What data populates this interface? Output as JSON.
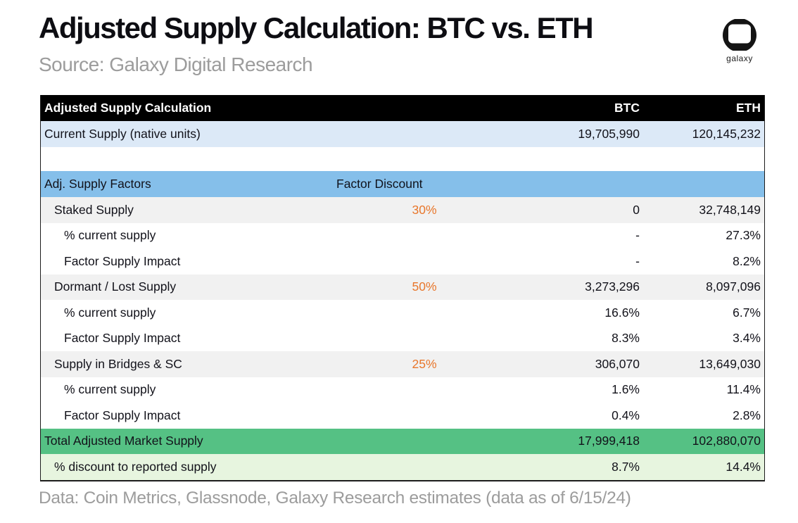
{
  "header": {
    "title": "Adjusted Supply Calculation: BTC vs. ETH",
    "source": "Source: Galaxy Digital Research",
    "logo_text": "galaxy"
  },
  "chart_data": {
    "type": "table",
    "title": "Adjusted Supply Calculation: BTC vs. ETH",
    "columns": [
      "Adjusted Supply Calculation",
      "Factor Discount",
      "BTC",
      "ETH"
    ],
    "header_row": {
      "label": "Adjusted Supply Calculation",
      "discount": "",
      "btc": "BTC",
      "eth": "ETH"
    },
    "rows": [
      {
        "label": "Current Supply (native units)",
        "discount": "",
        "btc": "19,705,990",
        "eth": "120,145,232",
        "style": "lightblue",
        "indent": 0
      },
      {
        "label": "",
        "discount": "",
        "btc": "",
        "eth": "",
        "style": "spacer",
        "indent": 0
      },
      {
        "label": "Adj. Supply Factors",
        "discount": "Factor Discount",
        "btc": "",
        "eth": "",
        "style": "blue",
        "indent": 0
      },
      {
        "label": "Staked Supply",
        "discount": "30%",
        "btc": "0",
        "eth": "32,748,149",
        "style": "gray",
        "indent": 1
      },
      {
        "label": "% current supply",
        "discount": "",
        "btc": "-",
        "eth": "27.3%",
        "style": "white",
        "indent": 2
      },
      {
        "label": "Factor Supply Impact",
        "discount": "",
        "btc": "-",
        "eth": "8.2%",
        "style": "white",
        "indent": 2
      },
      {
        "label": "Dormant / Lost Supply",
        "discount": "50%",
        "btc": "3,273,296",
        "eth": "8,097,096",
        "style": "gray",
        "indent": 1
      },
      {
        "label": "% current supply",
        "discount": "",
        "btc": "16.6%",
        "eth": "6.7%",
        "style": "white",
        "indent": 2
      },
      {
        "label": "Factor Supply Impact",
        "discount": "",
        "btc": "8.3%",
        "eth": "3.4%",
        "style": "white",
        "indent": 2
      },
      {
        "label": "Supply in Bridges & SC",
        "discount": "25%",
        "btc": "306,070",
        "eth": "13,649,030",
        "style": "gray",
        "indent": 1
      },
      {
        "label": "% current supply",
        "discount": "",
        "btc": "1.6%",
        "eth": "11.4%",
        "style": "white",
        "indent": 2
      },
      {
        "label": "Factor Supply Impact",
        "discount": "",
        "btc": "0.4%",
        "eth": "2.8%",
        "style": "white",
        "indent": 2
      },
      {
        "label": "Total Adjusted Market Supply",
        "discount": "",
        "btc": "17,999,418",
        "eth": "102,880,070",
        "style": "green",
        "indent": 0
      },
      {
        "label": "% discount to reported supply",
        "discount": "",
        "btc": "8.7%",
        "eth": "14.4%",
        "style": "lightgreen",
        "indent": 1
      }
    ]
  },
  "footer": {
    "note": "Data: Coin Metrics, Glassnode, Galaxy Research estimates (data as of 6/15/24)"
  },
  "colors": {
    "header_bg": "#000000",
    "light_blue": "#DCE9F7",
    "blue": "#85BFEA",
    "row_gray": "#F1F1F1",
    "green": "#55C184",
    "light_green": "#E7F5DF",
    "accent_orange": "#E8772C",
    "title_color": "#0D0D12",
    "muted_gray": "#9C9C9C"
  }
}
